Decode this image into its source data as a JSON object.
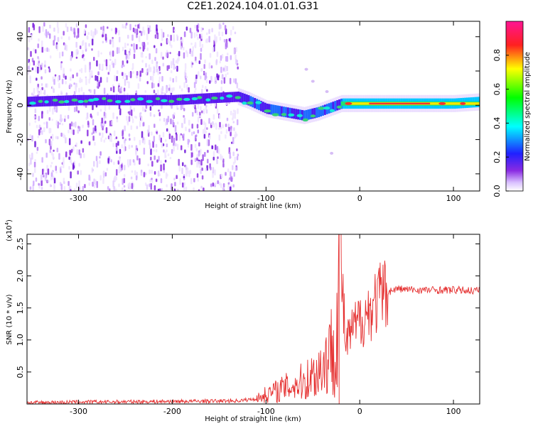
{
  "title": "C2E1.2024.104.01.01.G31",
  "colors": {
    "snr_line": "#e53030",
    "background": "#ffffff",
    "axis": "#000000"
  },
  "chart_data": [
    {
      "type": "heatmap",
      "name": "spectrogram",
      "xlabel": "Height of straight line (km)",
      "ylabel": "Frequency (Hz)",
      "xlim": [
        -355,
        128
      ],
      "ylim": [
        -50,
        49
      ],
      "xticks": [
        -300,
        -200,
        -100,
        0,
        100
      ],
      "xtick_labels": [
        "-300",
        "-200",
        "-100",
        "0",
        "100"
      ],
      "yticks": [
        40,
        20,
        0,
        -20,
        -40
      ],
      "ytick_labels": [
        "40",
        "20",
        "0",
        "-20",
        "-40"
      ],
      "colorbar": {
        "label": "Normalized spectral amplitude",
        "range": [
          0,
          1
        ],
        "ticks": [
          0.0,
          0.2,
          0.4,
          0.6,
          0.8
        ],
        "tick_labels": [
          "0.0",
          "0.2",
          "0.4",
          "0.6",
          "0.8"
        ]
      },
      "signal_band": [
        {
          "x": -355,
          "f": 2
        },
        {
          "x": -300,
          "f": 3
        },
        {
          "x": -200,
          "f": 3
        },
        {
          "x": -130,
          "f": 5
        },
        {
          "x": -120,
          "f": 3
        },
        {
          "x": -100,
          "f": -2
        },
        {
          "x": -80,
          "f": -4
        },
        {
          "x": -60,
          "f": -6
        },
        {
          "x": -45,
          "f": -4
        },
        {
          "x": -30,
          "f": -1
        },
        {
          "x": -20,
          "f": 1
        },
        {
          "x": 0,
          "f": 1
        },
        {
          "x": 50,
          "f": 1
        },
        {
          "x": 100,
          "f": 1
        },
        {
          "x": 128,
          "f": 2
        }
      ],
      "noise_region_x": [
        -355,
        -130
      ]
    },
    {
      "type": "line",
      "name": "snr",
      "xlabel": "Height of straight line (km)",
      "ylabel": "SNR (10 * v/v)",
      "y_scale_label": "(x10",
      "y_scale_exp": "4",
      "y_scale_close": ")",
      "xlim": [
        -355,
        128
      ],
      "ylim": [
        0,
        26500
      ],
      "xticks": [
        -300,
        -200,
        -100,
        0,
        100
      ],
      "xtick_labels": [
        "-300",
        "-200",
        "-100",
        "0",
        "100"
      ],
      "yticks": [
        5000,
        10000,
        15000,
        20000,
        25000
      ],
      "ytick_labels": [
        "0.5",
        "1.0",
        "1.5",
        "2.0",
        "2.5"
      ],
      "series": [
        {
          "name": "SNR",
          "points": [
            {
              "x": -355,
              "y": 200
            },
            {
              "x": -300,
              "y": 300
            },
            {
              "x": -200,
              "y": 400
            },
            {
              "x": -130,
              "y": 500
            },
            {
              "x": -110,
              "y": 800
            },
            {
              "x": -100,
              "y": 1500
            },
            {
              "x": -80,
              "y": 2500
            },
            {
              "x": -60,
              "y": 3500
            },
            {
              "x": -45,
              "y": 5000
            },
            {
              "x": -35,
              "y": 7000
            },
            {
              "x": -25,
              "y": 10000
            },
            {
              "x": -22,
              "y": 26500
            },
            {
              "x": -15,
              "y": 9000
            },
            {
              "x": -10,
              "y": 11000
            },
            {
              "x": 0,
              "y": 13000
            },
            {
              "x": 10,
              "y": 14500
            },
            {
              "x": 20,
              "y": 16500
            },
            {
              "x": 30,
              "y": 17500
            },
            {
              "x": 40,
              "y": 18000
            },
            {
              "x": 60,
              "y": 17800
            },
            {
              "x": 80,
              "y": 17800
            },
            {
              "x": 100,
              "y": 17800
            },
            {
              "x": 128,
              "y": 17700
            }
          ]
        }
      ]
    }
  ]
}
